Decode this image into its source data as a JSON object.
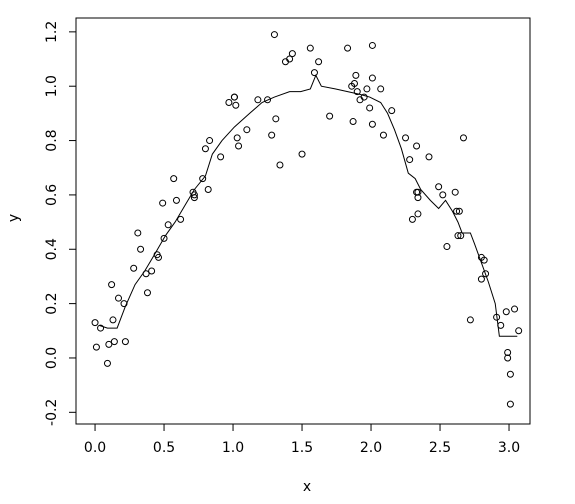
{
  "chart_data": {
    "type": "scatter",
    "xlabel": "x",
    "ylabel": "y",
    "xlim": [
      -0.138,
      3.152
    ],
    "ylim": [
      -0.243,
      1.251
    ],
    "xticks": [
      {
        "value": 0,
        "label": "0.0"
      },
      0.5,
      {
        "value": 1,
        "label": "1.0"
      },
      1.5,
      {
        "value": 2,
        "label": "2.0"
      },
      2.5,
      {
        "value": 3,
        "label": "3.0"
      }
    ],
    "yticks": [
      -0.2,
      {
        "value": 0,
        "label": "0.0"
      },
      0.2,
      0.4,
      0.6,
      0.8,
      {
        "value": 1,
        "label": "1.0"
      },
      1.2
    ],
    "color": "#000000",
    "points": {
      "x": [
        0.0,
        0.01,
        0.04,
        0.09,
        0.1,
        0.12,
        0.13,
        0.14,
        0.17,
        0.21,
        0.22,
        0.28,
        0.31,
        0.33,
        0.37,
        0.38,
        0.41,
        0.45,
        0.46,
        0.49,
        0.5,
        0.53,
        0.57,
        0.59,
        0.62,
        0.71,
        0.72,
        0.72,
        0.78,
        0.8,
        0.82,
        0.83,
        0.91,
        0.97,
        1.01,
        1.01,
        1.02,
        1.03,
        1.04,
        1.1,
        1.18,
        1.25,
        1.28,
        1.3,
        1.31,
        1.34,
        1.38,
        1.41,
        1.43,
        1.5,
        1.56,
        1.59,
        1.62,
        1.7,
        1.83,
        1.86,
        1.87,
        1.88,
        1.89,
        1.9,
        1.92,
        1.95,
        1.97,
        1.99,
        2.01,
        2.01,
        2.01,
        2.07,
        2.09,
        2.15,
        2.25,
        2.28,
        2.3,
        2.33,
        2.33,
        2.34,
        2.34,
        2.34,
        2.42,
        2.49,
        2.52,
        2.55,
        2.61,
        2.62,
        2.63,
        2.64,
        2.65,
        2.67,
        2.72,
        2.8,
        2.8,
        2.82,
        2.83,
        2.91,
        2.94,
        2.98,
        2.99,
        2.99,
        3.01,
        3.01,
        3.04,
        3.07
      ],
      "y": [
        0.13,
        0.04,
        0.11,
        -0.02,
        0.05,
        0.27,
        0.14,
        0.06,
        0.22,
        0.2,
        0.06,
        0.33,
        0.46,
        0.4,
        0.31,
        0.24,
        0.32,
        0.38,
        0.37,
        0.57,
        0.44,
        0.49,
        0.66,
        0.58,
        0.51,
        0.61,
        0.6,
        0.59,
        0.66,
        0.77,
        0.62,
        0.8,
        0.74,
        0.94,
        0.96,
        0.96,
        0.93,
        0.81,
        0.78,
        0.84,
        0.95,
        0.95,
        0.82,
        1.19,
        0.88,
        0.71,
        1.09,
        1.1,
        1.12,
        0.75,
        1.14,
        1.05,
        1.09,
        0.89,
        1.14,
        1.0,
        0.87,
        1.01,
        1.04,
        0.98,
        0.95,
        0.96,
        0.99,
        0.92,
        1.15,
        1.03,
        0.86,
        0.99,
        0.82,
        0.91,
        0.81,
        0.73,
        0.51,
        0.78,
        0.61,
        0.61,
        0.59,
        0.53,
        0.74,
        0.63,
        0.6,
        0.41,
        0.61,
        0.54,
        0.45,
        0.54,
        0.45,
        0.81,
        0.14,
        0.37,
        0.29,
        0.36,
        0.31,
        0.15,
        0.12,
        0.17,
        0.02,
        0.0,
        -0.06,
        -0.17,
        0.18,
        0.1
      ]
    },
    "line": {
      "x": [
        0.03,
        0.09,
        0.16,
        0.22,
        0.29,
        0.36,
        0.43,
        0.51,
        0.58,
        0.65,
        0.72,
        0.8,
        0.85,
        0.92,
        1.01,
        1.12,
        1.21,
        1.3,
        1.41,
        1.49,
        1.56,
        1.6,
        1.64,
        1.74,
        1.83,
        1.92,
        1.99,
        2.07,
        2.12,
        2.17,
        2.22,
        2.27,
        2.32,
        2.36,
        2.43,
        2.49,
        2.54,
        2.59,
        2.63,
        2.66,
        2.72,
        2.75,
        2.8,
        2.85,
        2.9,
        2.93,
        3.01,
        3.06
      ],
      "y": [
        0.12,
        0.11,
        0.11,
        0.19,
        0.27,
        0.32,
        0.38,
        0.45,
        0.5,
        0.56,
        0.62,
        0.67,
        0.75,
        0.8,
        0.85,
        0.9,
        0.94,
        0.96,
        0.98,
        0.98,
        0.99,
        1.04,
        1.0,
        0.99,
        0.98,
        0.97,
        0.96,
        0.94,
        0.9,
        0.84,
        0.77,
        0.68,
        0.66,
        0.62,
        0.58,
        0.55,
        0.58,
        0.54,
        0.5,
        0.46,
        0.46,
        0.42,
        0.35,
        0.28,
        0.2,
        0.08,
        0.08,
        0.08
      ]
    }
  }
}
